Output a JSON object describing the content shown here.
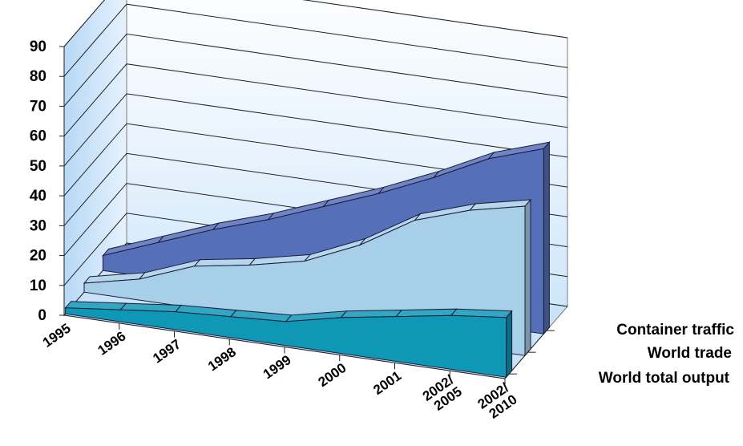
{
  "chart_data": {
    "type": "area",
    "style": "3d-stacked-depth",
    "categories": [
      "1995",
      "1996",
      "1997",
      "1998",
      "1999",
      "2000",
      "2001",
      "2002/ 2005",
      "2002/ 2010"
    ],
    "category_lines": [
      [
        "1995"
      ],
      [
        "1996"
      ],
      [
        "1997"
      ],
      [
        "1998"
      ],
      [
        "1999"
      ],
      [
        "2000"
      ],
      [
        "2001"
      ],
      [
        "2002/",
        "2005"
      ],
      [
        "2002/",
        "2010"
      ]
    ],
    "y_ticks": [
      "0",
      "10",
      "20",
      "30",
      "40",
      "50",
      "60",
      "70",
      "80",
      "90"
    ],
    "ylim": [
      0,
      90
    ],
    "grid": true,
    "legend_position": "right",
    "series": [
      {
        "name": "Container traffic",
        "color": "#5570b8",
        "values": [
          5,
          12,
          19,
          25,
          32,
          39,
          47,
          56,
          62
        ]
      },
      {
        "name": "World trade",
        "color": "#a8cfe8",
        "values": [
          3,
          7,
          14,
          17,
          21,
          29,
          40,
          46,
          50
        ]
      },
      {
        "name": "World total output",
        "color": "#0f97b6",
        "values": [
          2,
          4,
          6,
          7,
          8,
          12,
          15,
          18,
          20
        ]
      }
    ],
    "title": "",
    "xlabel": "",
    "ylabel": ""
  }
}
